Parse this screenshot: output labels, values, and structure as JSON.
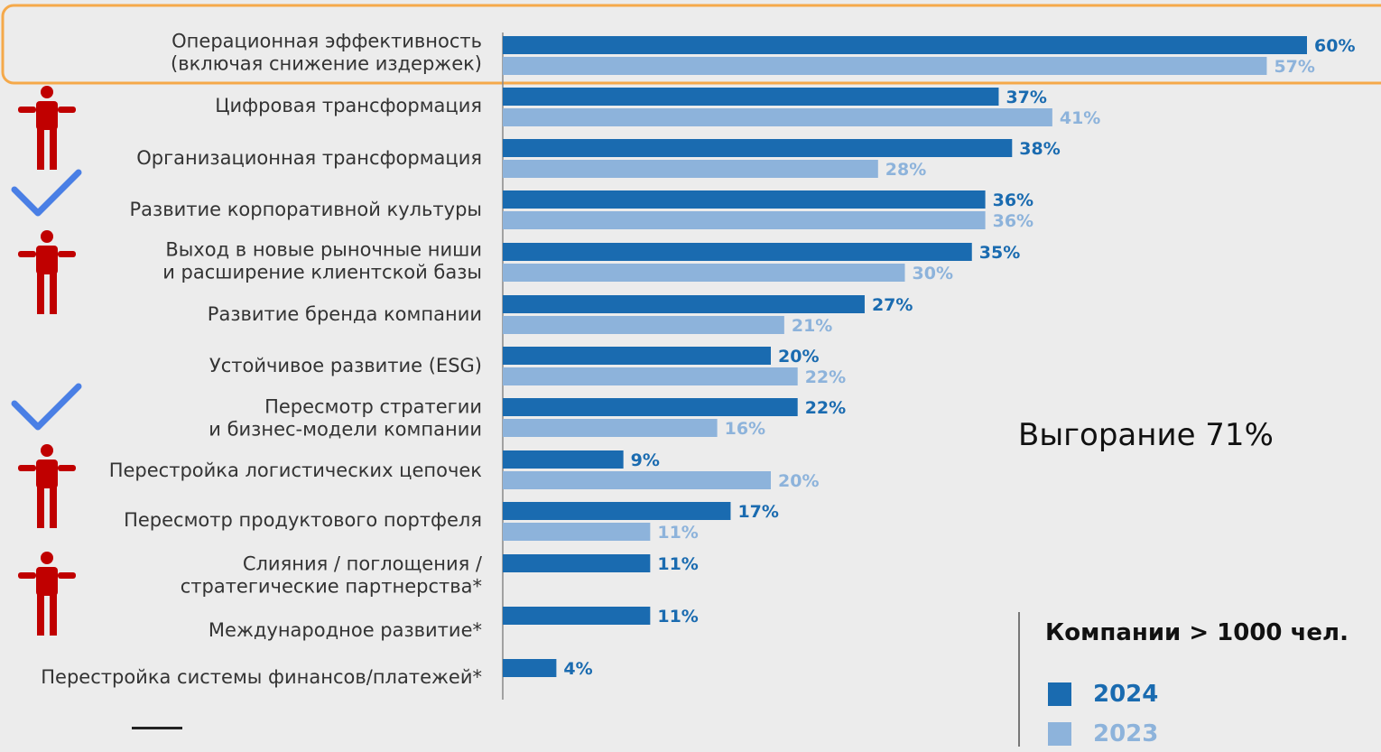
{
  "chart_data": {
    "type": "bar",
    "orientation": "horizontal",
    "categories": [
      [
        "Операционная эффективность",
        "(включая снижение издержек)"
      ],
      [
        "Цифровая трансформация"
      ],
      [
        "Организационная трансформация"
      ],
      [
        "Развитие корпоративной культуры"
      ],
      [
        "Выход в новые рыночные ниши",
        "и расширение клиентской базы"
      ],
      [
        "Развитие бренда компании"
      ],
      [
        "Устойчивое развитие (ESG)"
      ],
      [
        "Пересмотр стратегии",
        "и бизнес-модели компании"
      ],
      [
        "Перестройка логистических цепочек"
      ],
      [
        "Пересмотр продуктового портфеля"
      ],
      [
        "Слияния / поглощения /",
        "стратегические партнерства*"
      ],
      [
        "Международное развитие*"
      ],
      [
        "Перестройка системы финансов/платежей*"
      ]
    ],
    "series": [
      {
        "name": "2024",
        "color": "#1a6bb0",
        "values": [
          60,
          37,
          38,
          36,
          35,
          27,
          20,
          22,
          9,
          17,
          11,
          11,
          4
        ],
        "labels": [
          "60%",
          "37%",
          "38%",
          "36%",
          "35%",
          "27%",
          "20%",
          "22%",
          "9%",
          "17%",
          "11%",
          "11%",
          "4%"
        ]
      },
      {
        "name": "2023",
        "color": "#8db3db",
        "values": [
          57,
          41,
          28,
          36,
          30,
          21,
          22,
          16,
          20,
          11,
          null,
          null,
          null
        ],
        "labels": [
          "57%",
          "41%",
          "28%",
          "36%",
          "30%",
          "21%",
          "22%",
          "16%",
          "20%",
          "11%",
          null,
          null,
          null
        ]
      }
    ],
    "xlim": [
      0,
      60
    ],
    "highlight_category": 0,
    "highlight_color": "#f5a94a",
    "markers": [
      {
        "category": 1,
        "icon": "person-icon",
        "color": "#c00000"
      },
      {
        "category": 3,
        "icon": "checkmark-icon",
        "color": "#4a7fe5"
      },
      {
        "category": 4,
        "icon": "person-icon",
        "color": "#c00000"
      },
      {
        "category": 7,
        "icon": "checkmark-icon",
        "color": "#4a7fe5"
      },
      {
        "category": 8,
        "icon": "person-icon",
        "color": "#c00000"
      },
      {
        "category": 10,
        "icon": "person-icon",
        "color": "#c00000"
      }
    ]
  },
  "annotation": "Выгорание 71%",
  "legend": {
    "title": "Компании > 1000 чел.",
    "items": [
      {
        "label": "2024",
        "color": "#1a6bb0"
      },
      {
        "label": "2023",
        "color": "#8db3db"
      }
    ]
  }
}
